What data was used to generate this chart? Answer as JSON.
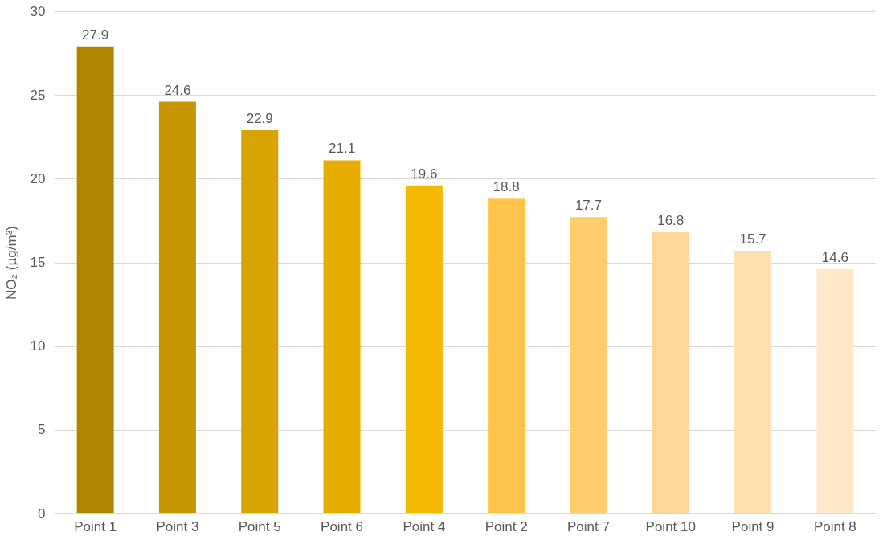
{
  "chart_data": {
    "type": "bar",
    "ylabel": "NO₂ (µg/m³)",
    "categories": [
      "Point 1",
      "Point 3",
      "Point 5",
      "Point 6",
      "Point 4",
      "Point 2",
      "Point 7",
      "Point 10",
      "Point 9",
      "Point 8"
    ],
    "values": [
      27.9,
      24.6,
      22.9,
      21.1,
      19.6,
      18.8,
      17.7,
      16.8,
      15.7,
      14.6
    ],
    "colors": [
      "#b08600",
      "#c89600",
      "#d9a300",
      "#e6ad00",
      "#f5b800",
      "#ffc54a",
      "#ffcd6a",
      "#ffd696",
      "#ffdfb0",
      "#ffe8c8"
    ],
    "ylim": [
      0,
      30
    ],
    "yticks": [
      0,
      5,
      10,
      15,
      20,
      25,
      30
    ],
    "grid": "y",
    "data_labels": true
  }
}
